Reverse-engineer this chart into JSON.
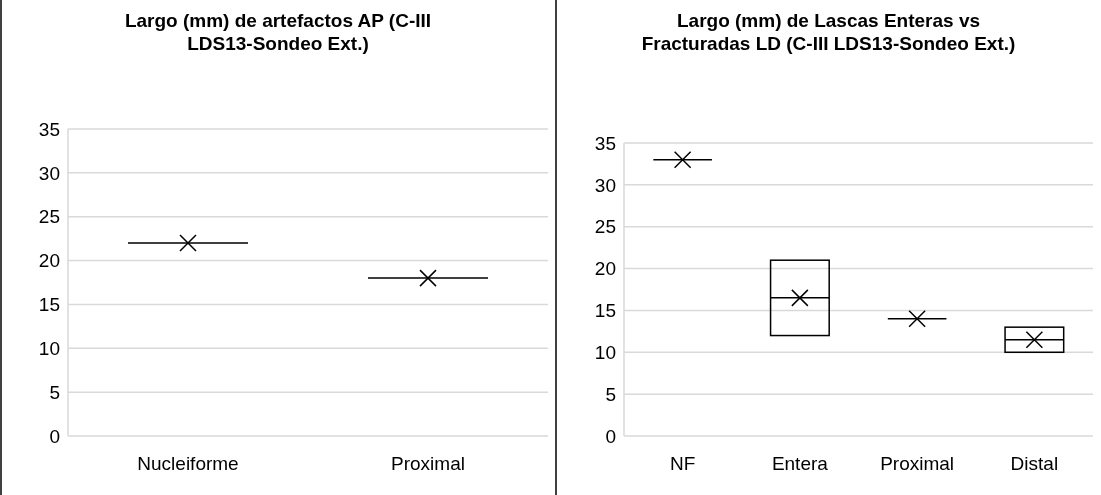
{
  "chart_data": [
    {
      "type": "box",
      "title": "Largo (mm) de artefactos AP (C-III LDS13-Sondeo Ext.)",
      "categories": [
        "Nucleiforme",
        "Proximal"
      ],
      "color": "#000000",
      "boxes": [
        {
          "low": 22,
          "q1": 22,
          "median": 22,
          "q3": 22,
          "high": 22,
          "mean": 22
        },
        {
          "low": 18,
          "q1": 18,
          "median": 18,
          "q3": 18,
          "high": 18,
          "mean": 18
        }
      ],
      "ylim": [
        0,
        35
      ],
      "yticks": [
        0,
        5,
        10,
        15,
        20,
        25,
        30,
        35
      ],
      "grid": "y",
      "marker": "cross"
    },
    {
      "type": "box",
      "title": "Largo (mm) de Lascas Enteras vs Fracturadas LD (C-III LDS13-Sondeo Ext.)",
      "categories": [
        "NF",
        "Entera",
        "Proximal",
        "Distal"
      ],
      "color": "#000000",
      "boxes": [
        {
          "low": 33,
          "q1": 33,
          "median": 33,
          "q3": 33,
          "high": 33,
          "mean": 33
        },
        {
          "low": 12,
          "q1": 12,
          "median": 16.5,
          "q3": 21,
          "high": 21,
          "mean": 16.5
        },
        {
          "low": 14,
          "q1": 14,
          "median": 14,
          "q3": 14,
          "high": 14,
          "mean": 14
        },
        {
          "low": 10,
          "q1": 10,
          "median": 11.5,
          "q3": 13,
          "high": 13,
          "mean": 11.5
        }
      ],
      "ylim": [
        0,
        35
      ],
      "yticks": [
        0,
        5,
        10,
        15,
        20,
        25,
        30,
        35
      ],
      "grid": "y",
      "marker": "cross"
    }
  ]
}
